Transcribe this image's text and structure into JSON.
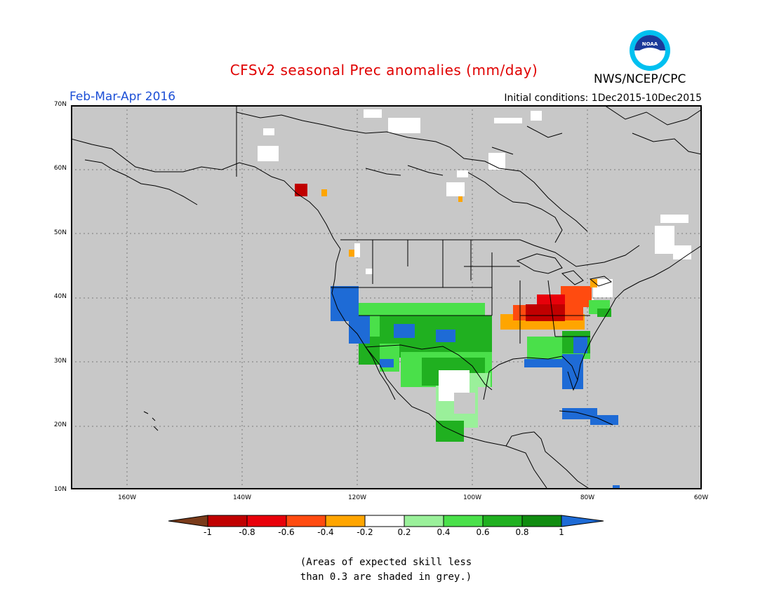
{
  "title": "CFSv2 seasonal Prec anomalies (mm/day)",
  "period": "Feb-Mar-Apr 2016",
  "initial_conditions": "Initial conditions: 1Dec2015-10Dec2015",
  "agency": "NWS/NCEP/CPC",
  "logo_text": "NOAA",
  "lat_labels": [
    "70N",
    "60N",
    "50N",
    "40N",
    "30N",
    "20N",
    "10N"
  ],
  "lon_labels": [
    "160W",
    "140W",
    "120W",
    "100W",
    "80W",
    "60W"
  ],
  "colorbar": {
    "labels": [
      "-1",
      "-0.8",
      "-0.6",
      "-0.4",
      "-0.2",
      "0.2",
      "0.4",
      "0.6",
      "0.8",
      "1"
    ],
    "colors": [
      "#7a3b1a",
      "#c00000",
      "#e8000a",
      "#ff4b10",
      "#ffa500",
      "#ffffff",
      "#9af09a",
      "#4ae04a",
      "#20b020",
      "#108c10",
      "#1e6bd6"
    ]
  },
  "colors": {
    "grey_mask": "#c8c8c8",
    "coast": "#000000",
    "title_red": "#e00000",
    "period_blue": "#1c4fd6"
  },
  "note_lines": [
    "(Areas of expected skill less",
    "than 0.3 are shaded in grey.)"
  ]
}
